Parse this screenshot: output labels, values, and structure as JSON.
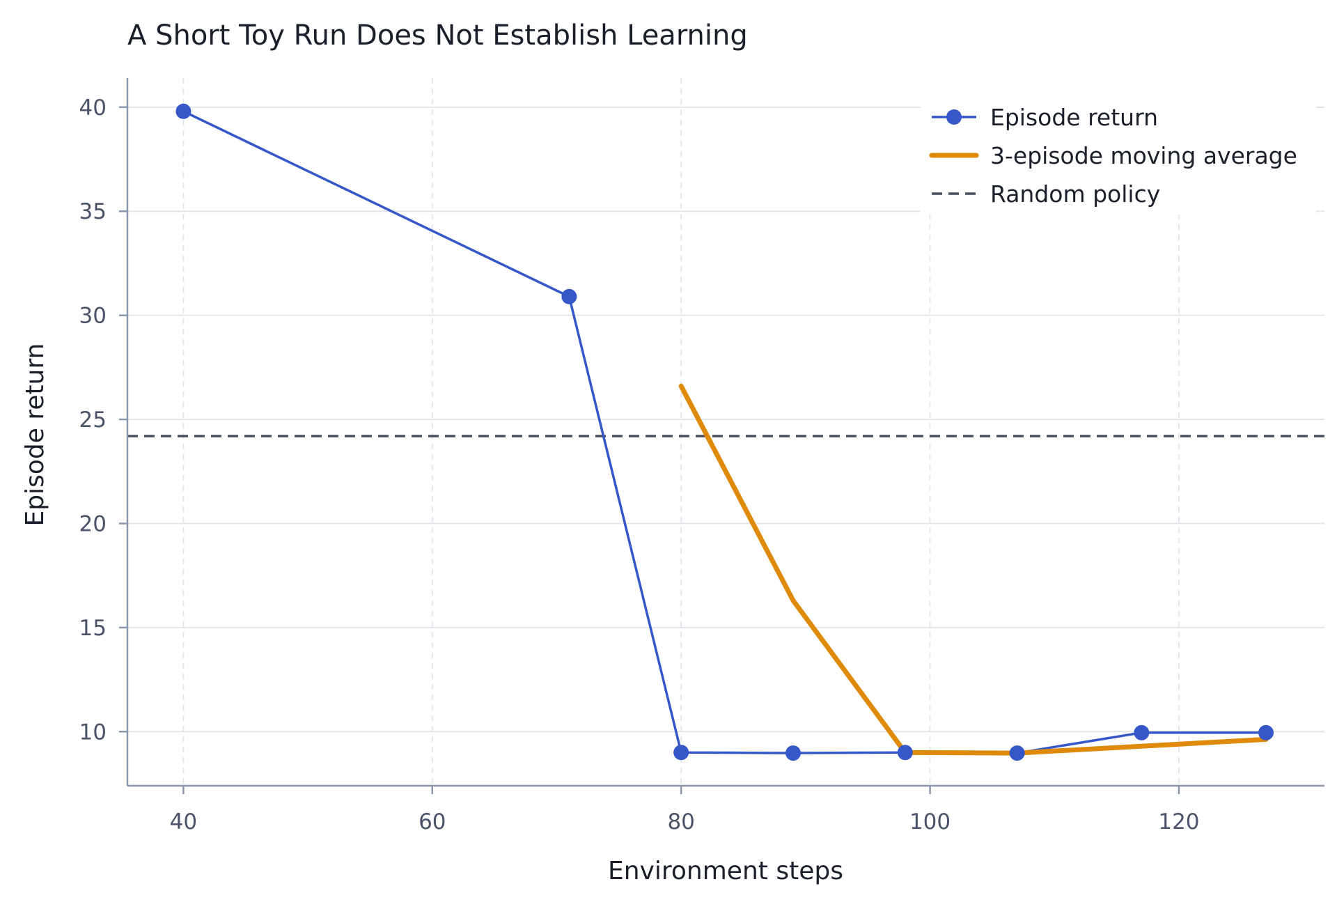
{
  "chart_data": {
    "type": "line",
    "title": "A Short Toy Run Does Not Establish Learning",
    "xlabel": "Environment steps",
    "ylabel": "Episode return",
    "xlim": [
      35.5,
      131.7
    ],
    "ylim": [
      7.4,
      41.4
    ],
    "xticks": [
      40,
      60,
      80,
      100,
      120
    ],
    "yticks": [
      10,
      15,
      20,
      25,
      30,
      35,
      40
    ],
    "grid": true,
    "legend_position": "top-right",
    "series": [
      {
        "name": "Episode return",
        "style": "line-with-markers",
        "color": "#3557c8",
        "x": [
          40,
          71,
          80,
          89,
          98,
          107,
          117,
          127
        ],
        "y": [
          39.8,
          30.9,
          9.0,
          8.97,
          9.0,
          8.97,
          9.95,
          9.95
        ]
      },
      {
        "name": "3-episode moving average",
        "style": "thick-line",
        "color": "#e08a0b",
        "x": [
          80,
          89,
          98,
          107,
          127
        ],
        "y": [
          26.6,
          16.3,
          9.0,
          8.97,
          9.63
        ]
      },
      {
        "name": "Random policy",
        "style": "dashed-horizontal",
        "color": "#474e5e",
        "y": 24.2
      }
    ]
  },
  "colors": {
    "axis": "#8a96aa",
    "grid": "#e3e7ec",
    "tick_text": "#4a5368",
    "text": "#1a1f2b"
  }
}
